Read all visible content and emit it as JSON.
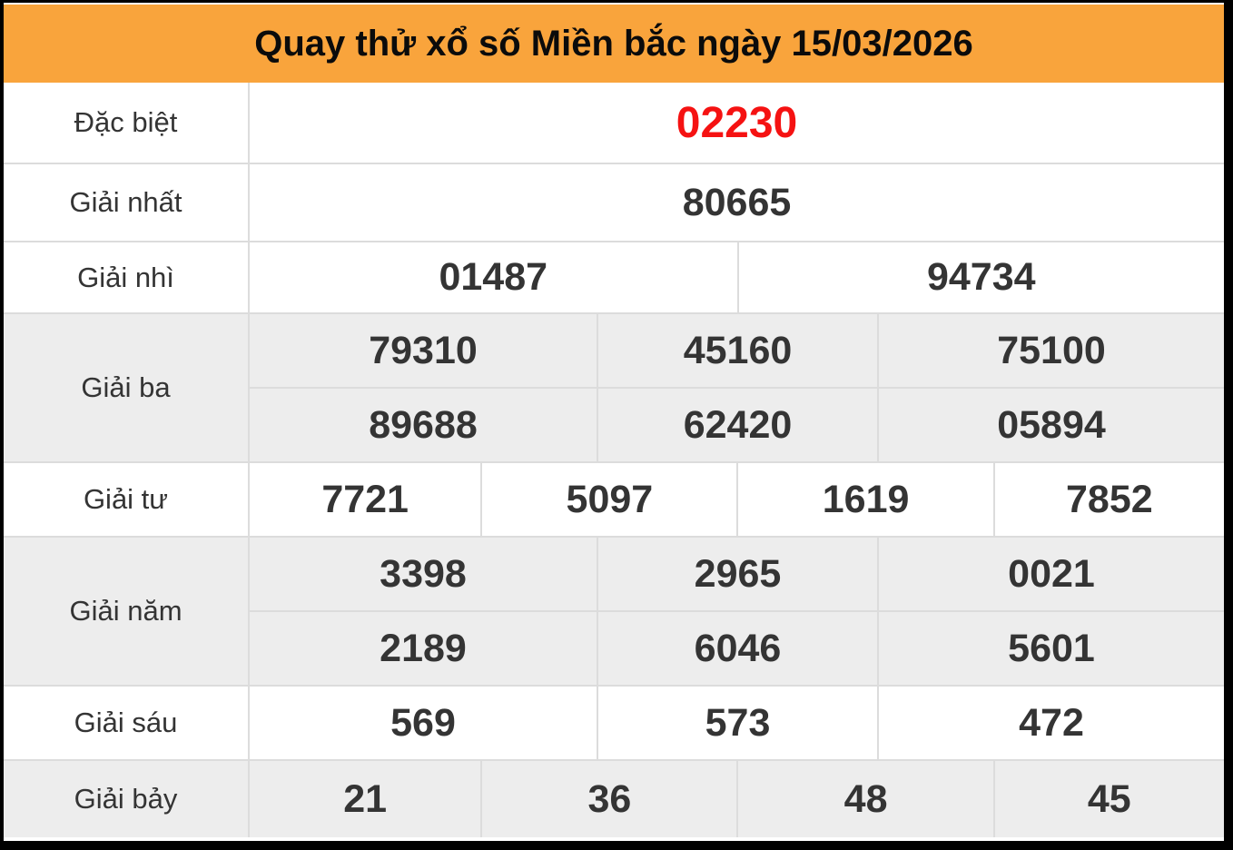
{
  "header": {
    "title": "Quay thử xổ số Miền bắc ngày 15/03/2026"
  },
  "table": {
    "rows": [
      {
        "label": "Đặc biệt",
        "special": true,
        "shaded": false,
        "lines": [
          [
            "02230"
          ]
        ]
      },
      {
        "label": "Giải nhất",
        "special": false,
        "shaded": false,
        "lines": [
          [
            "80665"
          ]
        ]
      },
      {
        "label": "Giải nhì",
        "special": false,
        "shaded": false,
        "lines": [
          [
            "01487",
            "94734"
          ]
        ]
      },
      {
        "label": "Giải ba",
        "special": false,
        "shaded": true,
        "lines": [
          [
            "79310",
            "45160",
            "75100"
          ],
          [
            "89688",
            "62420",
            "05894"
          ]
        ]
      },
      {
        "label": "Giải tư",
        "special": false,
        "shaded": false,
        "lines": [
          [
            "7721",
            "5097",
            "1619",
            "7852"
          ]
        ]
      },
      {
        "label": "Giải năm",
        "special": false,
        "shaded": true,
        "lines": [
          [
            "3398",
            "2965",
            "0021"
          ],
          [
            "2189",
            "6046",
            "5601"
          ]
        ]
      },
      {
        "label": "Giải sáu",
        "special": false,
        "shaded": false,
        "lines": [
          [
            "569",
            "573",
            "472"
          ]
        ]
      },
      {
        "label": "Giải bảy",
        "special": false,
        "shaded": true,
        "lines": [
          [
            "21",
            "36",
            "48",
            "45"
          ]
        ]
      }
    ]
  },
  "colors": {
    "frame_bg": "#000000",
    "header_bg": "#f9a43c",
    "title_text": "#0b0b0b",
    "number_text": "#343434",
    "special_number": "#f51212",
    "shaded_row_bg": "#ededed",
    "grid_line": "#dcdcdc"
  }
}
